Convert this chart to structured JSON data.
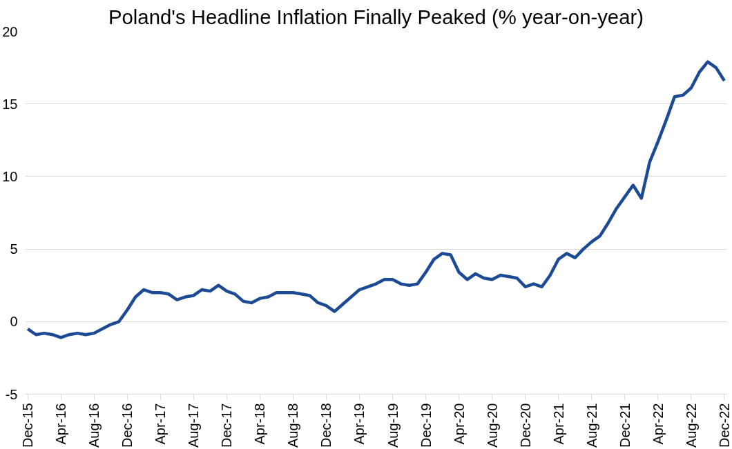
{
  "chart_data": {
    "type": "line",
    "title": "Poland's Headline Inflation Finally Peaked (% year-on-year)",
    "categories": [
      "Dec-15",
      null,
      null,
      null,
      "Apr-16",
      null,
      null,
      null,
      "Aug-16",
      null,
      null,
      null,
      "Dec-16",
      null,
      null,
      null,
      "Apr-17",
      null,
      null,
      null,
      "Aug-17",
      null,
      null,
      null,
      "Dec-17",
      null,
      null,
      null,
      "Apr-18",
      null,
      null,
      null,
      "Aug-18",
      null,
      null,
      null,
      "Dec-18",
      null,
      null,
      null,
      "Apr-19",
      null,
      null,
      null,
      "Aug-19",
      null,
      null,
      null,
      "Dec-19",
      null,
      null,
      null,
      "Apr-20",
      null,
      null,
      null,
      "Aug-20",
      null,
      null,
      null,
      "Dec-20",
      null,
      null,
      null,
      "Apr-21",
      null,
      null,
      null,
      "Aug-21",
      null,
      null,
      null,
      "Dec-21",
      null,
      null,
      null,
      "Apr-22",
      null,
      null,
      null,
      "Aug-22",
      null,
      null,
      null,
      "Dec-22"
    ],
    "series": [
      {
        "color": "#1c4a94",
        "values": [
          -0.5,
          -0.9,
          -0.8,
          -0.9,
          -1.1,
          -0.9,
          -0.8,
          -0.9,
          -0.8,
          -0.5,
          -0.2,
          0.0,
          0.8,
          1.7,
          2.2,
          2.0,
          2.0,
          1.9,
          1.5,
          1.7,
          1.8,
          2.2,
          2.1,
          2.5,
          2.1,
          1.9,
          1.4,
          1.3,
          1.6,
          1.7,
          2.0,
          2.0,
          2.0,
          1.9,
          1.8,
          1.3,
          1.1,
          0.7,
          1.2,
          1.7,
          2.2,
          2.4,
          2.6,
          2.9,
          2.9,
          2.6,
          2.5,
          2.6,
          3.4,
          4.3,
          4.7,
          4.6,
          3.4,
          2.9,
          3.3,
          3.0,
          2.9,
          3.2,
          3.1,
          3.0,
          2.4,
          2.6,
          2.4,
          3.2,
          4.3,
          4.7,
          4.4,
          5.0,
          5.5,
          5.9,
          6.8,
          7.8,
          8.6,
          9.4,
          8.5,
          11.0,
          12.4,
          13.9,
          15.5,
          15.6,
          16.1,
          17.2,
          17.9,
          17.5,
          16.6
        ]
      }
    ],
    "ylim": [
      -5,
      20
    ],
    "yticks": [
      -5,
      0,
      5,
      10,
      15,
      20
    ],
    "grid": "y",
    "marker": "none",
    "line_style": "solid"
  }
}
